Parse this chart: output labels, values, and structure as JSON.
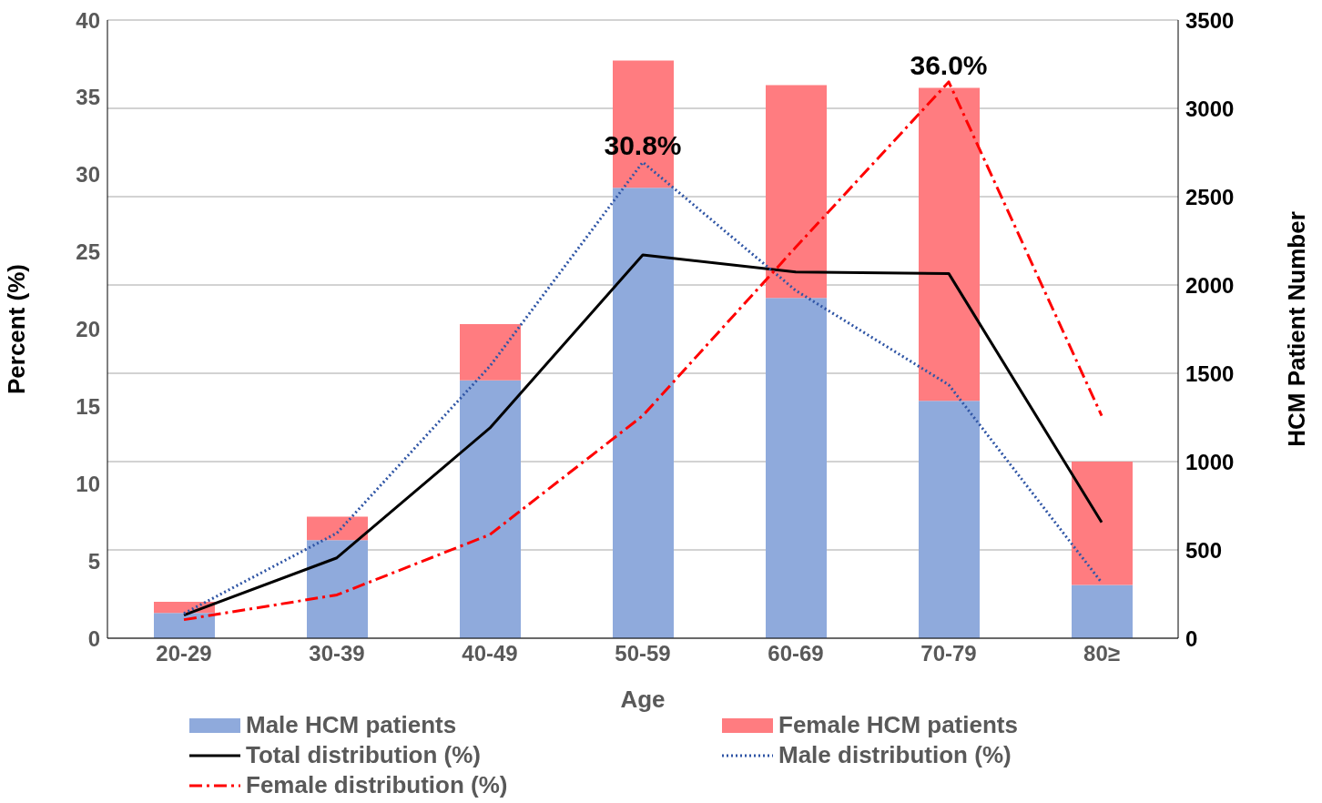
{
  "chart_data": {
    "type": "bar",
    "categories": [
      "20-29",
      "30-39",
      "40-49",
      "50-59",
      "60-69",
      "70-79",
      "80≥"
    ],
    "xlabel": "Age",
    "ylabel": "Percent (%)",
    "y2label": "HCM Patient Number",
    "ylim": [
      0,
      40
    ],
    "yticks": [
      0,
      5,
      10,
      15,
      20,
      25,
      30,
      35,
      40
    ],
    "y2lim": [
      0,
      3500
    ],
    "y2ticks": [
      0,
      500,
      1000,
      1500,
      2000,
      2500,
      3000,
      3500
    ],
    "stacked": true,
    "grid": "y",
    "legend": "bottom",
    "marker": "none",
    "series": [
      {
        "name": "Male HCM patients",
        "axis": "y2",
        "color": "#8faadc",
        "values": [
          143,
          556,
          1460,
          2550,
          1926,
          1344,
          302
        ]
      },
      {
        "name": "Female HCM patients",
        "axis": "y2",
        "color": "#ff7c80",
        "values": [
          63,
          132,
          318,
          720,
          1206,
          1772,
          698
        ]
      },
      {
        "name": "Total distribution (%)",
        "type": "line",
        "color": "#000000",
        "line_style": "solid",
        "values": [
          1.5,
          5.2,
          13.6,
          24.8,
          23.7,
          23.6,
          7.5
        ]
      },
      {
        "name": "Male distribution (%)",
        "type": "line",
        "color": "#2f55a5",
        "line_style": "dotted",
        "values": [
          1.6,
          6.8,
          17.6,
          30.8,
          22.5,
          16.4,
          3.6
        ]
      },
      {
        "name": "Female distribution (%)",
        "type": "line",
        "color": "#ff0000",
        "line_style": "dashed",
        "values": [
          1.2,
          2.8,
          6.7,
          14.4,
          25.3,
          36.0,
          14.4
        ]
      }
    ],
    "annotations": [
      {
        "text": "30.8%",
        "x": "50-59",
        "y": 30.8
      },
      {
        "text": "36.0%",
        "x": "70-79",
        "y": 36.0
      }
    ]
  }
}
